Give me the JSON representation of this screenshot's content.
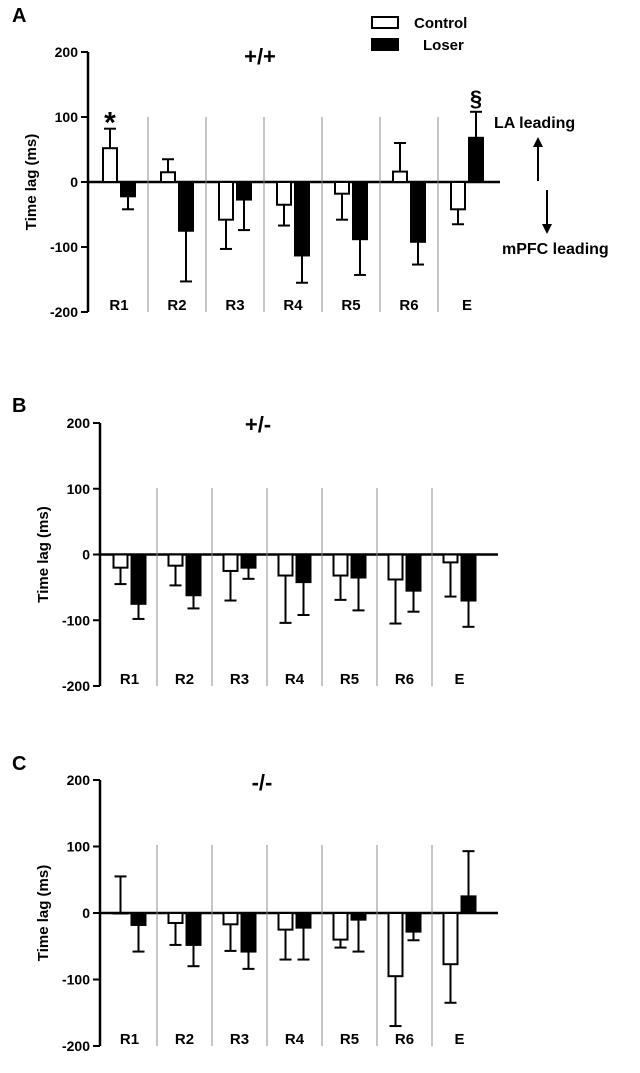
{
  "legend": {
    "items": [
      {
        "label": "Control",
        "fill": "#ffffff"
      },
      {
        "label": "Loser",
        "fill": "#000000"
      }
    ]
  },
  "annotations": {
    "la_leading": "LA leading",
    "mpfc_leading": "mPFC leading"
  },
  "colors": {
    "axis": "#000000",
    "divider": "#8c8c8c",
    "control": "#ffffff",
    "loser": "#000000"
  },
  "chart_data": [
    {
      "type": "bar",
      "panel_letter": "A",
      "title": "+/+",
      "ylabel": "Time lag (ms)",
      "ylim": [
        -200,
        200
      ],
      "yticks": [
        -200,
        -100,
        0,
        100,
        200
      ],
      "categories": [
        "R1",
        "R2",
        "R3",
        "R4",
        "R5",
        "R6",
        "E"
      ],
      "error_bars": "one-sided, away from zero",
      "series": [
        {
          "name": "Control",
          "values": [
            52,
            15,
            -58,
            -35,
            -18,
            16,
            -42
          ],
          "errors": [
            30,
            20,
            45,
            32,
            40,
            44,
            23
          ]
        },
        {
          "name": "Loser",
          "values": [
            -22,
            -75,
            -27,
            -113,
            -88,
            -92,
            68
          ],
          "errors": [
            20,
            78,
            47,
            42,
            55,
            35,
            40
          ]
        }
      ],
      "markers": [
        {
          "text": "*",
          "category": "R1",
          "series": "Control"
        },
        {
          "text": "§",
          "category": "E",
          "series": "Loser"
        }
      ],
      "grid": false
    },
    {
      "type": "bar",
      "panel_letter": "B",
      "title": "+/-",
      "ylabel": "Time lag (ms)",
      "ylim": [
        -200,
        200
      ],
      "yticks": [
        -200,
        -100,
        0,
        100,
        200
      ],
      "categories": [
        "R1",
        "R2",
        "R3",
        "R4",
        "R5",
        "R6",
        "E"
      ],
      "error_bars": "one-sided, away from zero",
      "series": [
        {
          "name": "Control",
          "values": [
            -20,
            -17,
            -25,
            -32,
            -32,
            -38,
            -12
          ],
          "errors": [
            25,
            30,
            45,
            72,
            37,
            67,
            52
          ]
        },
        {
          "name": "Loser",
          "values": [
            -75,
            -62,
            -20,
            -42,
            -35,
            -55,
            -70
          ],
          "errors": [
            23,
            20,
            17,
            50,
            50,
            32,
            40
          ]
        }
      ],
      "grid": false
    },
    {
      "type": "bar",
      "panel_letter": "C",
      "title": "-/-",
      "ylabel": "Time lag (ms)",
      "ylim": [
        -200,
        200
      ],
      "yticks": [
        -200,
        -100,
        0,
        100,
        200
      ],
      "categories": [
        "R1",
        "R2",
        "R3",
        "R4",
        "R5",
        "R6",
        "E"
      ],
      "error_bars": "one-sided, away from zero",
      "series": [
        {
          "name": "Control",
          "values": [
            0,
            -15,
            -17,
            -25,
            -40,
            -95,
            -77
          ],
          "errors": [
            55,
            33,
            40,
            45,
            12,
            75,
            58
          ]
        },
        {
          "name": "Loser",
          "values": [
            -18,
            -48,
            -58,
            -22,
            -10,
            -28,
            25
          ],
          "errors": [
            40,
            32,
            26,
            48,
            48,
            13,
            68
          ]
        }
      ],
      "grid": false
    }
  ]
}
